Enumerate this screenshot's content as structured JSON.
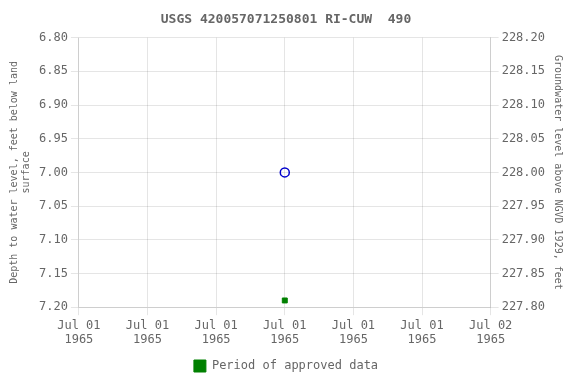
{
  "chart_data": {
    "type": "scatter",
    "title": "USGS 420057071250801 RI-CUW  490",
    "categories": [
      "Jul 01\n1965",
      "Jul 01\n1965",
      "Jul 01\n1965",
      "Jul 01\n1965",
      "Jul 01\n1965",
      "Jul 01\n1965",
      "Jul 02\n1965"
    ],
    "y_label": "Depth to water level, feet below land\nsurface",
    "y2_label": "Groundwater level above NGVD 1929, feet",
    "ylim": [
      7.2,
      6.8
    ],
    "yticks": [
      {
        "value": 6.8,
        "label": "6.80"
      },
      {
        "value": 6.85,
        "label": "6.85"
      },
      {
        "value": 6.9,
        "label": "6.90"
      },
      {
        "value": 6.95,
        "label": "6.95"
      },
      {
        "value": 7.0,
        "label": "7.00"
      },
      {
        "value": 7.05,
        "label": "7.05"
      },
      {
        "value": 7.1,
        "label": "7.10"
      },
      {
        "value": 7.15,
        "label": "7.15"
      },
      {
        "value": 7.2,
        "label": "7.20"
      }
    ],
    "y2lim": [
      227.8,
      228.2
    ],
    "y2ticks": [
      {
        "value": 227.8,
        "label": "227.80"
      },
      {
        "value": 227.85,
        "label": "227.85"
      },
      {
        "value": 227.9,
        "label": "227.90"
      },
      {
        "value": 227.95,
        "label": "227.95"
      },
      {
        "value": 228.0,
        "label": "228.00"
      },
      {
        "value": 228.05,
        "label": "228.05"
      },
      {
        "value": 228.1,
        "label": "228.10"
      },
      {
        "value": 228.15,
        "label": "228.15"
      },
      {
        "value": 228.2,
        "label": "228.20"
      }
    ],
    "series": [
      {
        "color": "#0000cc",
        "marker": "circle",
        "values": [
          null,
          null,
          null,
          7.0,
          null,
          null,
          null
        ]
      },
      {
        "name": "Period of approved data",
        "color": "#008000",
        "marker": "square",
        "values": [
          null,
          null,
          null,
          7.19,
          null,
          null,
          null
        ]
      }
    ],
    "grid": true,
    "legend": "bottom"
  }
}
